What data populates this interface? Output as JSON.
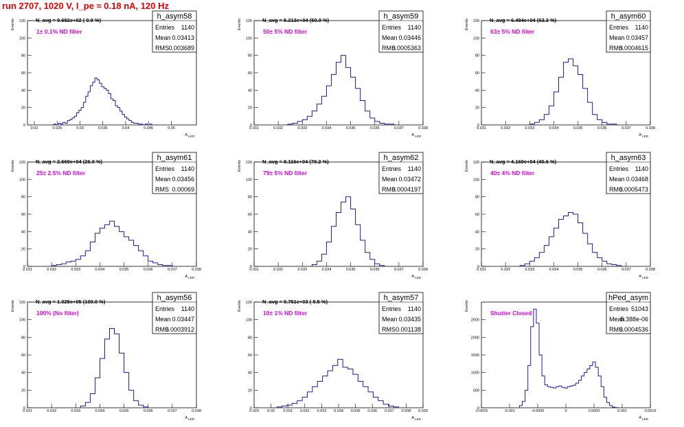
{
  "title": "run 2707,  1020 V, I_pe ≈ 0.18 nA, 120 Hz",
  "chart_data": [
    {
      "type": "histogram",
      "name": "h_asym58",
      "stats": {
        "entries": "1140",
        "mean": "0.03413",
        "rms": "0.003689"
      },
      "n_avg": "N_avg = 9.682e+02 ( 0.9 %)",
      "filter": "1± 0.1% ND filter",
      "xlabel": "A_LED",
      "ylabel": "Events",
      "xlim": [
        0.0185,
        0.0555
      ],
      "ylim": [
        0,
        120
      ],
      "xticks": [
        0.02,
        0.025,
        0.03,
        0.035,
        0.04,
        0.045,
        0.05
      ],
      "xticklabels": [
        "0.02",
        "0.025",
        "0.03",
        "0.035",
        "0.04",
        "0.045",
        "0.05"
      ],
      "yticks": [
        0,
        20,
        40,
        60,
        80,
        100,
        120
      ],
      "x": [
        0.0245,
        0.025,
        0.0255,
        0.026,
        0.0265,
        0.027,
        0.0275,
        0.028,
        0.0285,
        0.029,
        0.0295,
        0.03,
        0.0305,
        0.031,
        0.0315,
        0.032,
        0.0325,
        0.033,
        0.0335,
        0.034,
        0.0345,
        0.035,
        0.0355,
        0.036,
        0.0365,
        0.037,
        0.0375,
        0.038,
        0.0385,
        0.039,
        0.0395,
        0.04,
        0.0405,
        0.041,
        0.0415,
        0.042,
        0.0425,
        0.043,
        0.0435,
        0.044,
        0.0445,
        0.045,
        0.0455
      ],
      "values": [
        1,
        0,
        2,
        1,
        3,
        2,
        5,
        6,
        8,
        10,
        14,
        17,
        20,
        26,
        33,
        38,
        45,
        49,
        54,
        52,
        48,
        44,
        42,
        40,
        36,
        30,
        28,
        22,
        20,
        16,
        12,
        9,
        7,
        5,
        3,
        2,
        2,
        1,
        1,
        0,
        1,
        0,
        1
      ]
    },
    {
      "type": "histogram",
      "name": "h_asym59",
      "stats": {
        "entries": "1140",
        "mean": "0.03446",
        "rms": "0.0005363"
      },
      "n_avg": "N_avg = 5.213e+04 (50.9 %)",
      "filter": "50± 5% ND filter",
      "xlabel": "A_LED",
      "ylabel": "Events",
      "xlim": [
        0.031,
        0.038
      ],
      "ylim": [
        0,
        120
      ],
      "xticks": [
        0.031,
        0.032,
        0.033,
        0.034,
        0.035,
        0.036,
        0.037,
        0.038
      ],
      "xticklabels": [
        "0.031",
        "0.032",
        "0.033",
        "0.034",
        "0.035",
        "0.036",
        "0.037",
        "0.038"
      ],
      "yticks": [
        0,
        20,
        40,
        60,
        80,
        100,
        120
      ],
      "x": [
        0.0325,
        0.0327,
        0.0329,
        0.0331,
        0.0333,
        0.0335,
        0.0337,
        0.0339,
        0.0341,
        0.0343,
        0.0345,
        0.0347,
        0.0349,
        0.0351,
        0.0353,
        0.0355,
        0.0357,
        0.0359,
        0.0361,
        0.0363,
        0.0365,
        0.0367
      ],
      "values": [
        1,
        2,
        4,
        6,
        10,
        16,
        24,
        33,
        45,
        58,
        72,
        80,
        66,
        55,
        42,
        28,
        16,
        8,
        4,
        2,
        1,
        1
      ]
    },
    {
      "type": "histogram",
      "name": "h_asym60",
      "stats": {
        "entries": "1140",
        "mean": "0.03457",
        "rms": "0.0004615"
      },
      "n_avg": "N_avg = 6.484e+04 (63.3 %)",
      "filter": "63± 5% ND filter",
      "xlabel": "A_LED",
      "ylabel": "Events",
      "xlim": [
        0.031,
        0.038
      ],
      "ylim": [
        0,
        120
      ],
      "xticks": [
        0.031,
        0.032,
        0.033,
        0.034,
        0.035,
        0.036,
        0.037,
        0.038
      ],
      "xticklabels": [
        "0.031",
        "0.032",
        "0.033",
        "0.034",
        "0.035",
        "0.036",
        "0.037",
        "0.038"
      ],
      "yticks": [
        0,
        20,
        40,
        60,
        80,
        100,
        120
      ],
      "x": [
        0.0331,
        0.0333,
        0.0335,
        0.0337,
        0.0339,
        0.0341,
        0.0343,
        0.0345,
        0.0347,
        0.0349,
        0.0351,
        0.0353,
        0.0355,
        0.0357,
        0.0359,
        0.0361,
        0.0363,
        0.0365
      ],
      "values": [
        1,
        3,
        6,
        12,
        22,
        38,
        55,
        72,
        76,
        68,
        58,
        42,
        26,
        12,
        6,
        3,
        1,
        1
      ]
    },
    {
      "type": "histogram",
      "name": "h_asym61",
      "stats": {
        "entries": "1140",
        "mean": "0.03456",
        "rms": "0.00069"
      },
      "n_avg": "N_avg = 2.669e+04 (26.0 %)",
      "filter": "25± 2.5% ND filter",
      "xlabel": "A_LED",
      "ylabel": "Events",
      "xlim": [
        0.031,
        0.038
      ],
      "ylim": [
        0,
        120
      ],
      "xticks": [
        0.031,
        0.032,
        0.033,
        0.034,
        0.035,
        0.036,
        0.037,
        0.038
      ],
      "xticklabels": [
        "0.031",
        "0.032",
        "0.033",
        "0.034",
        "0.035",
        "0.036",
        "0.037",
        "0.038"
      ],
      "yticks": [
        0,
        20,
        40,
        60,
        80,
        100,
        120
      ],
      "x": [
        0.0321,
        0.0323,
        0.0325,
        0.0327,
        0.0329,
        0.0331,
        0.0333,
        0.0335,
        0.0337,
        0.0339,
        0.0341,
        0.0343,
        0.0345,
        0.0347,
        0.0349,
        0.0351,
        0.0353,
        0.0355,
        0.0357,
        0.0359,
        0.0361,
        0.0363,
        0.0365,
        0.0367,
        0.0369
      ],
      "values": [
        1,
        2,
        3,
        5,
        6,
        8,
        12,
        18,
        28,
        38,
        44,
        48,
        52,
        46,
        40,
        34,
        30,
        24,
        18,
        12,
        6,
        4,
        2,
        1,
        1
      ]
    },
    {
      "type": "histogram",
      "name": "h_asym62",
      "stats": {
        "entries": "1140",
        "mean": "0.03472",
        "rms": "0.0004197"
      },
      "n_avg": "N_avg = 8.116e+04 (79.2 %)",
      "filter": "79± 5% ND filter",
      "xlabel": "A_LED",
      "ylabel": "Events",
      "xlim": [
        0.031,
        0.038
      ],
      "ylim": [
        0,
        120
      ],
      "xticks": [
        0.031,
        0.032,
        0.033,
        0.034,
        0.035,
        0.036,
        0.037,
        0.038
      ],
      "xticklabels": [
        "0.031",
        "0.032",
        "0.033",
        "0.034",
        "0.035",
        "0.036",
        "0.037",
        "0.038"
      ],
      "yticks": [
        0,
        20,
        40,
        60,
        80,
        100,
        120
      ],
      "x": [
        0.0335,
        0.0337,
        0.0339,
        0.0341,
        0.0343,
        0.0345,
        0.0347,
        0.0349,
        0.0351,
        0.0353,
        0.0355,
        0.0357,
        0.0359,
        0.0361,
        0.0363
      ],
      "values": [
        2,
        6,
        14,
        28,
        46,
        62,
        74,
        80,
        66,
        48,
        30,
        16,
        8,
        3,
        1
      ]
    },
    {
      "type": "histogram",
      "name": "h_asym63",
      "stats": {
        "entries": "1140",
        "mean": "0.03468",
        "rms": "0.0005473"
      },
      "n_avg": "N_avg = 4.160e+04 (40.6 %)",
      "filter": "40± 4% ND filter",
      "xlabel": "A_LED",
      "ylabel": "Events",
      "xlim": [
        0.031,
        0.038
      ],
      "ylim": [
        0,
        120
      ],
      "xticks": [
        0.031,
        0.032,
        0.033,
        0.034,
        0.035,
        0.036,
        0.037,
        0.038
      ],
      "xticklabels": [
        "0.031",
        "0.032",
        "0.033",
        "0.034",
        "0.035",
        "0.036",
        "0.037",
        "0.038"
      ],
      "yticks": [
        0,
        20,
        40,
        60,
        80,
        100,
        120
      ],
      "x": [
        0.0327,
        0.0329,
        0.0331,
        0.0333,
        0.0335,
        0.0337,
        0.0339,
        0.0341,
        0.0343,
        0.0345,
        0.0347,
        0.0349,
        0.0351,
        0.0353,
        0.0355,
        0.0357,
        0.0359,
        0.0361,
        0.0363,
        0.0365,
        0.0367
      ],
      "values": [
        1,
        3,
        6,
        10,
        16,
        24,
        34,
        44,
        54,
        58,
        62,
        60,
        50,
        38,
        26,
        16,
        10,
        6,
        3,
        2,
        1
      ]
    },
    {
      "type": "histogram",
      "name": "h_asym56",
      "stats": {
        "entries": "1140",
        "mean": "0.03447",
        "rms": "0.0003912"
      },
      "n_avg": "N_avg = 1.025e+05 (100.0 %)",
      "filter": "100% (No filter)",
      "xlabel": "A_LED",
      "ylabel": "Events",
      "xlim": [
        0.031,
        0.038
      ],
      "ylim": [
        0,
        120
      ],
      "xticks": [
        0.031,
        0.032,
        0.033,
        0.034,
        0.035,
        0.036,
        0.037,
        0.038
      ],
      "xticklabels": [
        "0.031",
        "0.032",
        "0.033",
        "0.034",
        "0.035",
        "0.036",
        "0.037",
        "0.038"
      ],
      "yticks": [
        0,
        20,
        40,
        60,
        80,
        100,
        120
      ],
      "x": [
        0.0333,
        0.0335,
        0.0337,
        0.0339,
        0.0341,
        0.0343,
        0.0345,
        0.0347,
        0.0349,
        0.0351,
        0.0353,
        0.0355,
        0.0357,
        0.0359
      ],
      "values": [
        2,
        6,
        16,
        34,
        56,
        78,
        90,
        84,
        62,
        40,
        20,
        8,
        3,
        1
      ]
    },
    {
      "type": "histogram",
      "name": "h_asym57",
      "stats": {
        "entries": "1140",
        "mean": "0.03435",
        "rms": "0.001138"
      },
      "n_avg": "N_avg = 9.751e+03 ( 9.5 %)",
      "filter": "10± 1% ND filter",
      "xlabel": "A_LED",
      "ylabel": "Events",
      "xlim": [
        0.029,
        0.039
      ],
      "ylim": [
        0,
        120
      ],
      "xticks": [
        0.029,
        0.03,
        0.031,
        0.032,
        0.033,
        0.034,
        0.035,
        0.036,
        0.037,
        0.038,
        0.039
      ],
      "xticklabels": [
        "0.029",
        "0.03",
        "0.031",
        "0.032",
        "0.033",
        "0.034",
        "0.035",
        "0.036",
        "0.037",
        "0.038",
        "0.039"
      ],
      "yticks": [
        0,
        20,
        40,
        60,
        80,
        100,
        120
      ],
      "x": [
        0.0305,
        0.0308,
        0.0311,
        0.0314,
        0.0317,
        0.032,
        0.0323,
        0.0326,
        0.0329,
        0.0332,
        0.0335,
        0.0338,
        0.0341,
        0.0344,
        0.0347,
        0.035,
        0.0353,
        0.0356,
        0.0359,
        0.0362,
        0.0365,
        0.0368,
        0.0371,
        0.0374
      ],
      "values": [
        1,
        2,
        3,
        5,
        8,
        12,
        18,
        24,
        30,
        36,
        42,
        48,
        55,
        46,
        44,
        38,
        30,
        24,
        18,
        12,
        8,
        4,
        2,
        1
      ]
    },
    {
      "type": "histogram",
      "name": "hPed_asym",
      "stats": {
        "entries": "51043",
        "mean": "5.388e-06",
        "rms": "0.0004536"
      },
      "n_avg": "",
      "filter": "Shutter Closed",
      "xlabel": "A_LED",
      "ylabel": "Events",
      "xlim": [
        -0.0015,
        0.0015
      ],
      "ylim": [
        0,
        3000
      ],
      "xticks": [
        -0.0015,
        -0.001,
        -0.0005,
        0,
        0.0005,
        0.001,
        0.0015
      ],
      "xticklabels": [
        "-0.0015",
        "-0.001",
        "-0.0005",
        "0",
        "0.0005",
        "0.001",
        "0.0015"
      ],
      "yticks": [
        0,
        500,
        1000,
        1500,
        2000,
        2500
      ],
      "x": [
        -0.0008,
        -0.00075,
        -0.0007,
        -0.00065,
        -0.0006,
        -0.00055,
        -0.0005,
        -0.00045,
        -0.0004,
        -0.00035,
        -0.0003,
        -0.00025,
        -0.0002,
        -0.00015,
        -0.0001,
        -5e-05,
        0,
        5e-05,
        0.0001,
        0.00015,
        0.0002,
        0.00025,
        0.0003,
        0.00035,
        0.0004,
        0.00045,
        0.0005,
        0.00055,
        0.0006,
        0.00065,
        0.0007,
        0.00075,
        0.0008,
        0.00085,
        0.0009
      ],
      "values": [
        60,
        180,
        500,
        1200,
        2300,
        2800,
        2400,
        1500,
        900,
        650,
        600,
        580,
        560,
        600,
        620,
        580,
        560,
        600,
        620,
        640,
        700,
        780,
        900,
        1000,
        1100,
        1200,
        1300,
        1150,
        900,
        600,
        300,
        150,
        60,
        20,
        5
      ]
    }
  ]
}
